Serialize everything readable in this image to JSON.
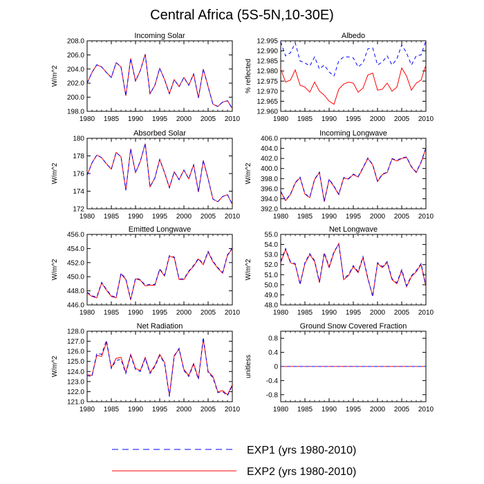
{
  "figure": {
    "title": "Central Africa (5S-5N,10-30E)"
  },
  "legend": {
    "entries": [
      {
        "label": "EXP1 (yrs 1980-2010)",
        "color": "#0000ff",
        "dash": true
      },
      {
        "label": "EXP2 (yrs 1980-2010)",
        "color": "#ff0000",
        "dash": false
      }
    ]
  },
  "chart_data": [
    {
      "type": "line",
      "title": "Incoming Solar",
      "ylabel": "W/m^2",
      "xlim": [
        1980,
        2010
      ],
      "ylim": [
        198.0,
        208.0
      ],
      "xticks": [
        1980,
        1985,
        1990,
        1995,
        2000,
        2005,
        2010
      ],
      "yticks": [
        198.0,
        200.0,
        202.0,
        204.0,
        206.0,
        208.0
      ],
      "ytick_labels": [
        "198.0",
        "200.0",
        "202.0",
        "204.0",
        "206.0",
        "208.0"
      ],
      "x": [
        1980,
        1981,
        1982,
        1983,
        1984,
        1985,
        1986,
        1987,
        1988,
        1989,
        1990,
        1991,
        1992,
        1993,
        1994,
        1995,
        1996,
        1997,
        1998,
        1999,
        2000,
        2001,
        2002,
        2003,
        2004,
        2005,
        2006,
        2007,
        2008,
        2009,
        2010
      ],
      "series": [
        {
          "name": "EXP1 (yrs 1980-2010)",
          "values": [
            202.0,
            203.5,
            204.6,
            204.3,
            203.5,
            202.8,
            204.9,
            204.3,
            200.2,
            205.5,
            202.3,
            203.8,
            206.1,
            200.5,
            201.7,
            204.1,
            202.5,
            200.5,
            202.5,
            201.5,
            202.8,
            201.7,
            203.3,
            199.9,
            204.0,
            201.5,
            199.0,
            198.7,
            199.3,
            199.5,
            198.4
          ]
        },
        {
          "name": "EXP2 (yrs 1980-2010)",
          "values": [
            202.0,
            203.5,
            204.6,
            204.3,
            203.5,
            202.8,
            204.9,
            204.3,
            200.2,
            205.5,
            202.3,
            203.8,
            206.1,
            200.5,
            201.7,
            204.1,
            202.5,
            200.5,
            202.5,
            201.5,
            202.8,
            201.7,
            203.3,
            199.9,
            204.0,
            201.5,
            199.0,
            198.7,
            199.3,
            199.5,
            198.4
          ]
        }
      ]
    },
    {
      "type": "line",
      "title": "Albedo",
      "ylabel": "% reflected",
      "xlim": [
        1980,
        2010
      ],
      "ylim": [
        12.96,
        12.995
      ],
      "xticks": [
        1980,
        1985,
        1990,
        1995,
        2000,
        2005,
        2010
      ],
      "yticks": [
        12.96,
        12.965,
        12.97,
        12.975,
        12.98,
        12.985,
        12.99,
        12.995
      ],
      "ytick_labels": [
        "12.960",
        "12.965",
        "12.970",
        "12.975",
        "12.980",
        "12.985",
        "12.990",
        "12.995"
      ],
      "x": [
        1980,
        1981,
        1982,
        1983,
        1984,
        1985,
        1986,
        1987,
        1988,
        1989,
        1990,
        1991,
        1992,
        1993,
        1994,
        1995,
        1996,
        1997,
        1998,
        1999,
        2000,
        2001,
        2002,
        2003,
        2004,
        2005,
        2006,
        2007,
        2008,
        2009,
        2010
      ],
      "series": [
        {
          "name": "EXP1 (yrs 1980-2010)",
          "values": [
            12.9945,
            12.9875,
            12.989,
            12.994,
            12.985,
            12.984,
            12.9825,
            12.987,
            12.981,
            12.983,
            12.9795,
            12.9775,
            12.985,
            12.987,
            12.987,
            12.9865,
            12.982,
            12.984,
            12.991,
            12.9915,
            12.983,
            12.9845,
            12.9875,
            12.983,
            12.986,
            12.993,
            12.989,
            12.983,
            12.9875,
            12.988,
            12.995
          ]
        },
        {
          "name": "EXP2 (yrs 1980-2010)",
          "values": [
            12.981,
            12.9745,
            12.9755,
            12.9805,
            12.973,
            12.972,
            12.9695,
            12.9745,
            12.97,
            12.968,
            12.965,
            12.9635,
            12.971,
            12.9735,
            12.9745,
            12.974,
            12.9695,
            12.9715,
            12.978,
            12.979,
            12.9705,
            12.971,
            12.974,
            12.97,
            12.972,
            12.9815,
            12.9775,
            12.9705,
            12.974,
            12.9755,
            12.983
          ]
        }
      ]
    },
    {
      "type": "line",
      "title": "Absorbed Solar",
      "ylabel": "W/m^2",
      "xlim": [
        1980,
        2010
      ],
      "ylim": [
        172,
        180
      ],
      "xticks": [
        1980,
        1985,
        1990,
        1995,
        2000,
        2005,
        2010
      ],
      "yticks": [
        172,
        174,
        176,
        178,
        180
      ],
      "ytick_labels": [
        "172",
        "174",
        "176",
        "178",
        "180"
      ],
      "x": [
        1980,
        1981,
        1982,
        1983,
        1984,
        1985,
        1986,
        1987,
        1988,
        1989,
        1990,
        1991,
        1992,
        1993,
        1994,
        1995,
        1996,
        1997,
        1998,
        1999,
        2000,
        2001,
        2002,
        2003,
        2004,
        2005,
        2006,
        2007,
        2008,
        2009,
        2010
      ],
      "series": [
        {
          "name": "EXP1 (yrs 1980-2010)",
          "values": [
            175.8,
            177.2,
            178.1,
            177.8,
            177.1,
            176.5,
            178.4,
            177.9,
            174.1,
            178.8,
            176.1,
            177.4,
            179.4,
            174.5,
            175.5,
            177.6,
            176.1,
            174.4,
            176.2,
            175.3,
            176.4,
            175.4,
            177.0,
            173.9,
            177.5,
            175.4,
            173.1,
            172.8,
            173.4,
            173.6,
            172.5
          ]
        },
        {
          "name": "EXP2 (yrs 1980-2010)",
          "values": [
            175.8,
            177.2,
            178.1,
            177.8,
            177.1,
            176.5,
            178.4,
            177.9,
            174.1,
            178.8,
            176.1,
            177.4,
            179.4,
            174.5,
            175.5,
            177.6,
            176.1,
            174.4,
            176.2,
            175.3,
            176.4,
            175.4,
            177.0,
            173.9,
            177.5,
            175.4,
            173.1,
            172.8,
            173.4,
            173.6,
            172.5
          ]
        }
      ]
    },
    {
      "type": "line",
      "title": "Incoming Longwave",
      "ylabel": "W/m^2",
      "xlim": [
        1980,
        2010
      ],
      "ylim": [
        392.0,
        406.0
      ],
      "xticks": [
        1980,
        1985,
        1990,
        1995,
        2000,
        2005,
        2010
      ],
      "yticks": [
        392.0,
        394.0,
        396.0,
        398.0,
        400.0,
        402.0,
        404.0,
        406.0
      ],
      "ytick_labels": [
        "392.0",
        "394.0",
        "396.0",
        "398.0",
        "400.0",
        "402.0",
        "404.0",
        "406.0"
      ],
      "x": [
        1980,
        1981,
        1982,
        1983,
        1984,
        1985,
        1986,
        1987,
        1988,
        1989,
        1990,
        1991,
        1992,
        1993,
        1994,
        1995,
        1996,
        1997,
        1998,
        1999,
        2000,
        2001,
        2002,
        2003,
        2004,
        2005,
        2006,
        2007,
        2008,
        2009,
        2010
      ],
      "series": [
        {
          "name": "EXP1 (yrs 1980-2010)",
          "values": [
            395.5,
            393.7,
            394.9,
            397.2,
            398.3,
            395.0,
            394.3,
            397.9,
            399.3,
            393.5,
            397.9,
            396.5,
            394.9,
            398.2,
            398.0,
            398.9,
            398.4,
            400.2,
            402.1,
            400.8,
            397.5,
            398.9,
            399.3,
            402.0,
            401.6,
            402.1,
            402.3,
            400.4,
            399.3,
            401.3,
            404.1
          ]
        },
        {
          "name": "EXP2 (yrs 1980-2010)",
          "values": [
            395.4,
            393.6,
            394.8,
            397.1,
            398.2,
            394.9,
            394.2,
            397.8,
            399.2,
            393.4,
            397.8,
            396.4,
            394.8,
            398.1,
            397.9,
            398.8,
            398.3,
            400.1,
            402.0,
            400.7,
            397.4,
            398.8,
            399.2,
            401.9,
            401.5,
            402.0,
            402.2,
            400.3,
            399.2,
            401.2,
            404.0
          ]
        }
      ]
    },
    {
      "type": "line",
      "title": "Emitted Longwave",
      "ylabel": "W/m^2",
      "xlim": [
        1980,
        2010
      ],
      "ylim": [
        446.0,
        456.0
      ],
      "xticks": [
        1980,
        1985,
        1990,
        1995,
        2000,
        2005,
        2010
      ],
      "yticks": [
        446.0,
        448.0,
        450.0,
        452.0,
        454.0,
        456.0
      ],
      "ytick_labels": [
        "446.0",
        "448.0",
        "450.0",
        "452.0",
        "454.0",
        "456.0"
      ],
      "x": [
        1980,
        1981,
        1982,
        1983,
        1984,
        1985,
        1986,
        1987,
        1988,
        1989,
        1990,
        1991,
        1992,
        1993,
        1994,
        1995,
        1996,
        1997,
        1998,
        1999,
        2000,
        2001,
        2002,
        2003,
        2004,
        2005,
        2006,
        2007,
        2008,
        2009,
        2010
      ],
      "series": [
        {
          "name": "EXP1 (yrs 1980-2010)",
          "values": [
            447.8,
            447.3,
            447.1,
            449.2,
            448.2,
            447.3,
            447.1,
            450.5,
            449.7,
            446.8,
            449.8,
            449.6,
            448.8,
            448.9,
            448.9,
            451.1,
            450.2,
            453.0,
            452.8,
            449.7,
            449.7,
            450.8,
            451.6,
            452.6,
            451.8,
            453.6,
            452.2,
            451.3,
            450.6,
            453.1,
            454.1
          ]
        },
        {
          "name": "EXP2 (yrs 1980-2010)",
          "values": [
            447.7,
            447.2,
            447.0,
            449.1,
            448.1,
            447.2,
            447.0,
            450.4,
            449.6,
            446.7,
            449.7,
            449.5,
            448.7,
            448.8,
            448.8,
            451.0,
            450.1,
            452.9,
            452.7,
            449.6,
            449.6,
            450.7,
            451.5,
            452.5,
            451.7,
            453.5,
            452.1,
            451.2,
            450.5,
            453.0,
            454.0
          ]
        }
      ]
    },
    {
      "type": "line",
      "title": "Net Longwave",
      "ylabel": "W/m^2",
      "xlim": [
        1980,
        2010
      ],
      "ylim": [
        48.0,
        55.0
      ],
      "xticks": [
        1980,
        1985,
        1990,
        1995,
        2000,
        2005,
        2010
      ],
      "yticks": [
        48.0,
        49.0,
        50.0,
        51.0,
        52.0,
        53.0,
        54.0,
        55.0
      ],
      "ytick_labels": [
        "48.0",
        "49.0",
        "50.0",
        "51.0",
        "52.0",
        "53.0",
        "54.0",
        "55.0"
      ],
      "x": [
        1980,
        1981,
        1982,
        1983,
        1984,
        1985,
        1986,
        1987,
        1988,
        1989,
        1990,
        1991,
        1992,
        1993,
        1994,
        1995,
        1996,
        1997,
        1998,
        1999,
        2000,
        2001,
        2002,
        2003,
        2004,
        2005,
        2006,
        2007,
        2008,
        2009,
        2010
      ],
      "series": [
        {
          "name": "EXP1 (yrs 1980-2010)",
          "values": [
            52.3,
            53.6,
            52.3,
            52.1,
            50.0,
            52.2,
            53.1,
            52.4,
            50.3,
            53.2,
            51.8,
            53.3,
            54.0,
            50.6,
            51.0,
            51.9,
            51.3,
            52.8,
            50.7,
            48.8,
            52.2,
            51.8,
            52.3,
            50.6,
            50.2,
            51.5,
            49.9,
            50.9,
            51.4,
            52.1,
            49.9
          ]
        },
        {
          "name": "EXP2 (yrs 1980-2010)",
          "values": [
            52.2,
            53.5,
            52.2,
            52.0,
            50.1,
            52.1,
            53.0,
            52.3,
            50.2,
            53.1,
            51.7,
            53.2,
            54.1,
            50.5,
            50.9,
            51.8,
            51.2,
            52.7,
            50.6,
            48.9,
            52.1,
            51.7,
            52.2,
            50.5,
            50.1,
            51.4,
            49.8,
            50.8,
            51.3,
            52.0,
            49.8
          ]
        }
      ]
    },
    {
      "type": "line",
      "title": "Net Radiation",
      "ylabel": "W/m^2",
      "xlim": [
        1980,
        2010
      ],
      "ylim": [
        121.0,
        128.0
      ],
      "xticks": [
        1980,
        1985,
        1990,
        1995,
        2000,
        2005,
        2010
      ],
      "yticks": [
        121.0,
        122.0,
        123.0,
        124.0,
        125.0,
        126.0,
        127.0,
        128.0
      ],
      "ytick_labels": [
        "121.0",
        "122.0",
        "123.0",
        "124.0",
        "125.0",
        "126.0",
        "127.0",
        "128.0"
      ],
      "x": [
        1980,
        1981,
        1982,
        1983,
        1984,
        1985,
        1986,
        1987,
        1988,
        1989,
        1990,
        1991,
        1992,
        1993,
        1994,
        1995,
        1996,
        1997,
        1998,
        1999,
        2000,
        2001,
        2002,
        2003,
        2004,
        2005,
        2006,
        2007,
        2008,
        2009,
        2010
      ],
      "series": [
        {
          "name": "EXP1 (yrs 1980-2010)",
          "values": [
            123.6,
            123.5,
            125.8,
            125.7,
            127.1,
            124.3,
            125.1,
            125.2,
            123.8,
            125.6,
            124.2,
            124.0,
            125.3,
            123.8,
            124.5,
            125.6,
            124.8,
            121.5,
            125.5,
            126.3,
            124.1,
            123.5,
            124.7,
            123.2,
            127.4,
            123.9,
            123.4,
            121.9,
            122.0,
            121.6,
            122.6
          ]
        },
        {
          "name": "EXP2 (yrs 1980-2010)",
          "values": [
            123.7,
            123.6,
            125.6,
            125.5,
            126.9,
            124.4,
            125.3,
            125.4,
            123.9,
            125.7,
            124.3,
            124.1,
            125.4,
            123.9,
            124.6,
            125.7,
            124.9,
            121.6,
            125.6,
            126.2,
            124.2,
            123.6,
            124.8,
            123.3,
            127.2,
            124.0,
            123.5,
            122.0,
            122.1,
            121.7,
            122.7
          ]
        }
      ]
    },
    {
      "type": "line",
      "title": "Ground Snow Covered Fraction",
      "ylabel": "unitless",
      "xlim": [
        1980,
        2010
      ],
      "ylim": [
        -1.0,
        1.0
      ],
      "xticks": [
        1980,
        1985,
        1990,
        1995,
        2000,
        2005,
        2010
      ],
      "yticks": [
        -0.8,
        -0.4,
        0,
        0.4,
        0.8
      ],
      "ytick_labels": [
        "-0.8",
        "-0.4",
        "0",
        "0.4",
        "0.8"
      ],
      "x": [
        1980,
        1981,
        1982,
        1983,
        1984,
        1985,
        1986,
        1987,
        1988,
        1989,
        1990,
        1991,
        1992,
        1993,
        1994,
        1995,
        1996,
        1997,
        1998,
        1999,
        2000,
        2001,
        2002,
        2003,
        2004,
        2005,
        2006,
        2007,
        2008,
        2009,
        2010
      ],
      "series": [
        {
          "name": "EXP1 (yrs 1980-2010)",
          "values": [
            0,
            0,
            0,
            0,
            0,
            0,
            0,
            0,
            0,
            0,
            0,
            0,
            0,
            0,
            0,
            0,
            0,
            0,
            0,
            0,
            0,
            0,
            0,
            0,
            0,
            0,
            0,
            0,
            0,
            0,
            0
          ]
        },
        {
          "name": "EXP2 (yrs 1980-2010)",
          "values": [
            0,
            0,
            0,
            0,
            0,
            0,
            0,
            0,
            0,
            0,
            0,
            0,
            0,
            0,
            0,
            0,
            0,
            0,
            0,
            0,
            0,
            0,
            0,
            0,
            0,
            0,
            0,
            0,
            0,
            0,
            0
          ]
        }
      ]
    }
  ]
}
